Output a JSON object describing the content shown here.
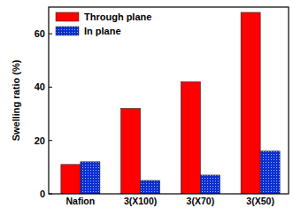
{
  "chart_data": {
    "type": "bar",
    "y_label": "Swelling ratio (%)",
    "categories": [
      "Nafion",
      "3(X100)",
      "3(X70)",
      "3(X50)"
    ],
    "series": [
      {
        "name": "Through plane",
        "color": "#ff0000",
        "values": [
          11,
          32,
          42,
          68
        ]
      },
      {
        "name": "In plane",
        "color": "#0a2fd0",
        "values": [
          12,
          5,
          7,
          16
        ]
      }
    ],
    "ylim": [
      0,
      70
    ],
    "yticks": [
      0,
      20,
      40,
      60
    ],
    "legend": "upper left",
    "grid": false
  }
}
